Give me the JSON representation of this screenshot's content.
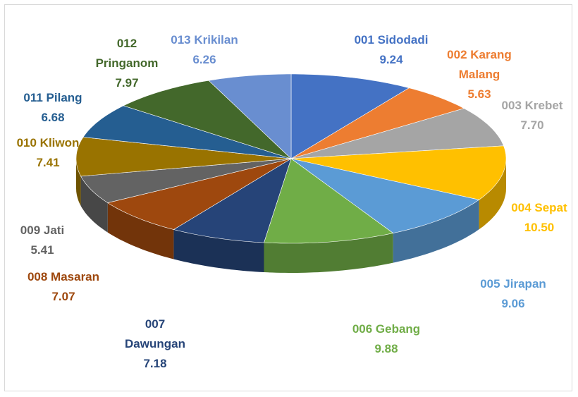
{
  "chart_data": {
    "type": "pie3d",
    "categories": [
      "001 Sidodadi",
      "002 Karang Malang",
      "003 Krebet",
      "004 Sepat",
      "005 Jirapan",
      "006 Gebang",
      "007 Dawungan",
      "008 Masaran",
      "009 Jati",
      "010 Kliwon",
      "011 Pilang",
      "012 Pringanom",
      "013 Krikilan"
    ],
    "values": [
      9.24,
      5.63,
      7.7,
      10.5,
      9.06,
      9.88,
      7.18,
      7.07,
      5.41,
      7.41,
      6.68,
      7.97,
      6.26
    ],
    "value_labels": [
      "9.24",
      "5.63",
      "7.70",
      "10.50",
      "9.06",
      "9.88",
      "7.18",
      "7.07",
      "5.41",
      "7.41",
      "6.68",
      "7.97",
      "6.26"
    ],
    "colors": [
      "#4472c4",
      "#ed7d31",
      "#a5a5a5",
      "#ffc000",
      "#5b9bd5",
      "#70ad47",
      "#264478",
      "#9e480e",
      "#636363",
      "#997300",
      "#255e91",
      "#43682b",
      "#698ed0"
    ]
  }
}
